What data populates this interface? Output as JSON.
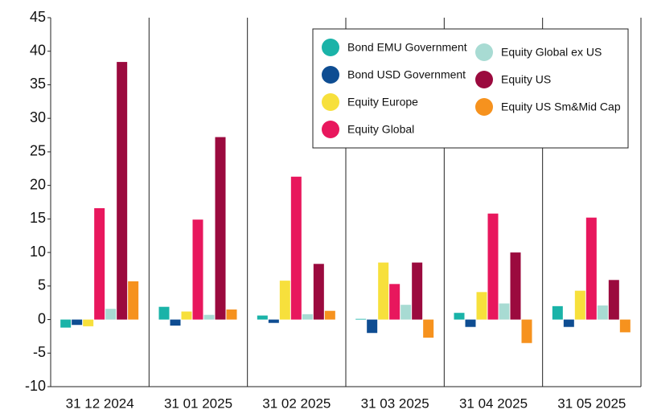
{
  "chart_data": {
    "type": "bar",
    "categories": [
      "31 12 2024",
      "31 01 2025",
      "31 02 2025",
      "31 03 2025",
      "31 04 2025",
      "31 05 2025"
    ],
    "series": [
      {
        "name": "Bond EMU Government",
        "color": "#1ab3a8",
        "values": [
          -1.2,
          1.9,
          0.6,
          0.1,
          1.0,
          2.0
        ]
      },
      {
        "name": "Bond USD Government",
        "color": "#0e4d92",
        "values": [
          -0.8,
          -0.9,
          -0.5,
          -2.0,
          -1.1,
          -1.1
        ]
      },
      {
        "name": "Equity Europe",
        "color": "#f7e03c",
        "values": [
          -1.0,
          1.2,
          5.8,
          8.5,
          4.1,
          4.3
        ]
      },
      {
        "name": "Equity Global",
        "color": "#e8175d",
        "values": [
          16.6,
          14.9,
          21.3,
          5.3,
          15.8,
          15.2
        ]
      },
      {
        "name": "Equity Global ex US",
        "color": "#a8dbd3",
        "values": [
          1.6,
          0.7,
          0.8,
          2.2,
          2.4,
          2.1
        ]
      },
      {
        "name": "Equity US",
        "color": "#9b0a3e",
        "values": [
          38.4,
          27.2,
          8.3,
          8.5,
          10.0,
          5.9
        ]
      },
      {
        "name": "Equity US Sm&Mid Cap",
        "color": "#f6921e",
        "values": [
          5.7,
          1.5,
          1.3,
          -2.7,
          -3.5,
          -1.9
        ]
      }
    ],
    "ylim": [
      -10,
      45
    ],
    "yticks": [
      -10,
      -5,
      0,
      5,
      10,
      15,
      20,
      25,
      30,
      35,
      40,
      45
    ],
    "legend": "upper right"
  }
}
